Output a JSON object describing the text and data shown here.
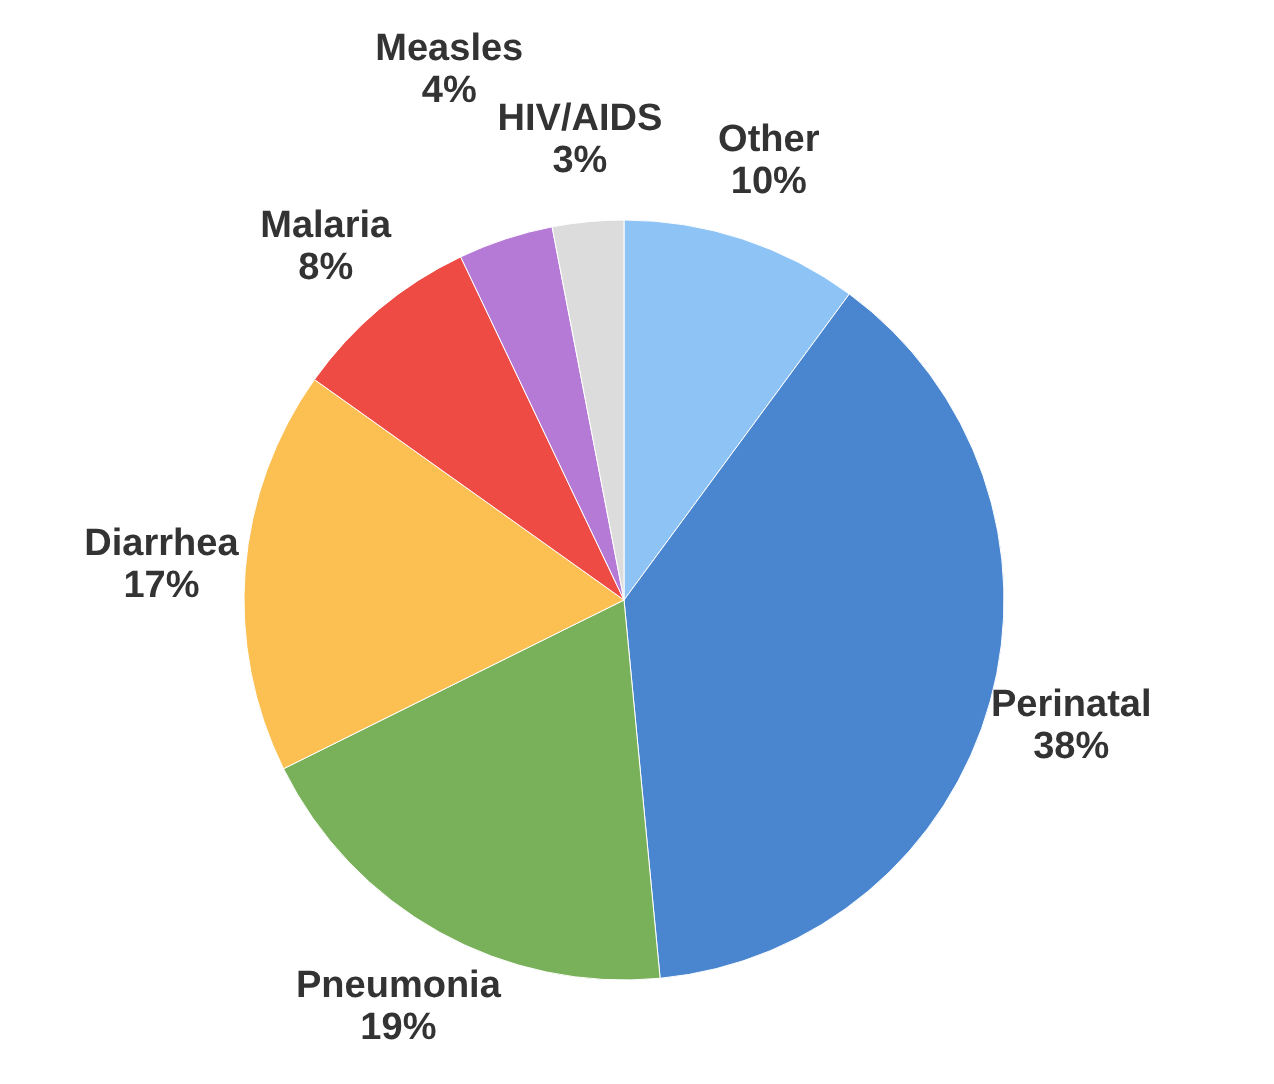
{
  "chart_data": {
    "type": "pie",
    "categories": [
      "Other",
      "Perinatal",
      "Pneumonia",
      "Diarrhea",
      "Malaria",
      "Measles",
      "HIV/AIDS"
    ],
    "values": [
      10,
      38,
      19,
      17,
      8,
      4,
      3
    ],
    "value_labels": [
      "10%",
      "38%",
      "19%",
      "17%",
      "8%",
      "4%",
      "3%"
    ],
    "colors": [
      "#8ec3f5",
      "#4a86d0",
      "#79b05a",
      "#fbbf52",
      "#ee4b45",
      "#b57ad6",
      "#dcdcdc"
    ]
  }
}
